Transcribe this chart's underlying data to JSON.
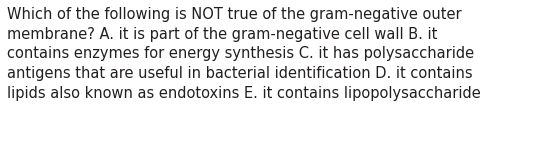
{
  "text": "Which of the following is NOT true of the gram-negative outer\nmembrane? A. it is part of the gram-negative cell wall B. it\ncontains enzymes for energy synthesis C. it has polysaccharide\nantigens that are useful in bacterial identification D. it contains\nlipids also known as endotoxins E. it contains lipopolysaccharide",
  "background_color": "#ffffff",
  "text_color": "#231f20",
  "font_size": 10.5,
  "fig_width": 5.58,
  "fig_height": 1.46,
  "dpi": 100
}
